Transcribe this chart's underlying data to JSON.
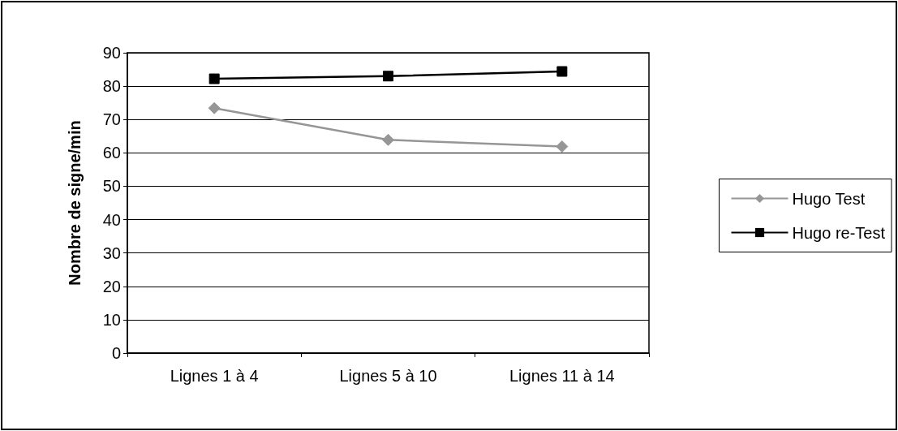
{
  "chart_data": {
    "type": "line",
    "ylabel": "Nombre de signe/min",
    "categories": [
      "Lignes 1 à 4",
      "Lignes 5 à 10",
      "Lignes 11 à 14"
    ],
    "series": [
      {
        "name": "Hugo Test",
        "color": "#969696",
        "marker": "diamond",
        "values": [
          73.4,
          63.9,
          61.9
        ]
      },
      {
        "name": "Hugo re-Test",
        "color": "#000000",
        "marker": "square",
        "values": [
          82.2,
          83.0,
          84.4
        ]
      }
    ],
    "ylim": [
      0,
      90
    ],
    "yticks": [
      0,
      10,
      20,
      30,
      40,
      50,
      60,
      70,
      80,
      90
    ],
    "grid": "y",
    "legend": "right"
  }
}
